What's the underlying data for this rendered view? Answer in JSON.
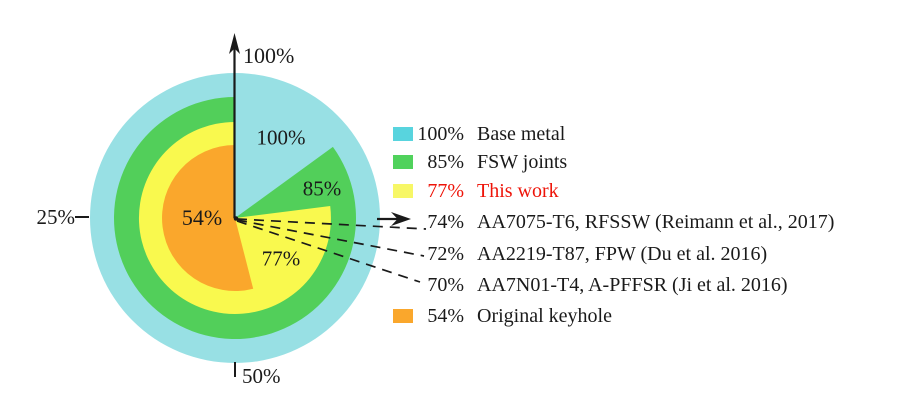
{
  "figure": {
    "background": "#ffffff",
    "text_color": "#1a1a1a",
    "highlight_color": "#ee1409"
  },
  "axis": {
    "top_label": "100%",
    "left_label": "25%",
    "bottom_label": "50%"
  },
  "pie_labels": {
    "base_metal": "100%",
    "fsw_joints": "85%",
    "this_work": "77%",
    "keyhole": "54%"
  },
  "legend": {
    "rows": [
      {
        "pct": "100%",
        "label": "Base metal",
        "swatch": "#58d4de"
      },
      {
        "pct": "85%",
        "label": "FSW joints",
        "swatch": "#50d25c"
      },
      {
        "pct": "77%",
        "label": "This work",
        "swatch": "#f7f766",
        "text_color": "#ee1409"
      },
      {
        "pct": "74%",
        "label": "AA7075-T6, RFSSW (Reimann et al., 2017)"
      },
      {
        "pct": "72%",
        "label": "AA2219-T87, FPW (Du et al. 2016)"
      },
      {
        "pct": "70%",
        "label": "AA7N01-T4, A-PFFSR (Ji et al. 2016)"
      },
      {
        "pct": "54%",
        "label": "Original keyhole",
        "swatch": "#faa72c"
      }
    ]
  },
  "chart_data": {
    "type": "pie",
    "variant": "nested_sector_pie",
    "unit": "% joint efficiency",
    "categories": [
      "Base metal",
      "FSW joints",
      "This work",
      "AA7075-T6, RFSSW (Reimann et al., 2017)",
      "AA2219-T87, FPW (Du et al. 2016)",
      "AA7N01-T4, A-PFFSR (Ji et al. 2016)",
      "Original keyhole"
    ],
    "values": [
      100,
      85,
      77,
      74,
      72,
      70,
      54
    ],
    "rings": [
      {
        "label": "Base metal",
        "value": 100,
        "radius": 145,
        "color": "#98e0e4"
      },
      {
        "label": "FSW joints",
        "value": 85,
        "radius": 121,
        "color": "#52cf5a"
      },
      {
        "label": "This work",
        "value": 77,
        "radius": 96,
        "color": "#f9f94e"
      },
      {
        "label": "Original keyhole",
        "value": 54,
        "radius": 73,
        "color": "#faa72c"
      }
    ],
    "angle_ticks": [
      {
        "position": "top",
        "label": "100%"
      },
      {
        "position": "left",
        "label": "25%"
      },
      {
        "position": "bottom",
        "label": "50%"
      }
    ],
    "callout_values": [
      "74%",
      "72%",
      "70%"
    ],
    "legend_position": "right",
    "sector_rule": "each ring spans value% of circle counterclockwise from top; gap reveals inner colors to center"
  }
}
